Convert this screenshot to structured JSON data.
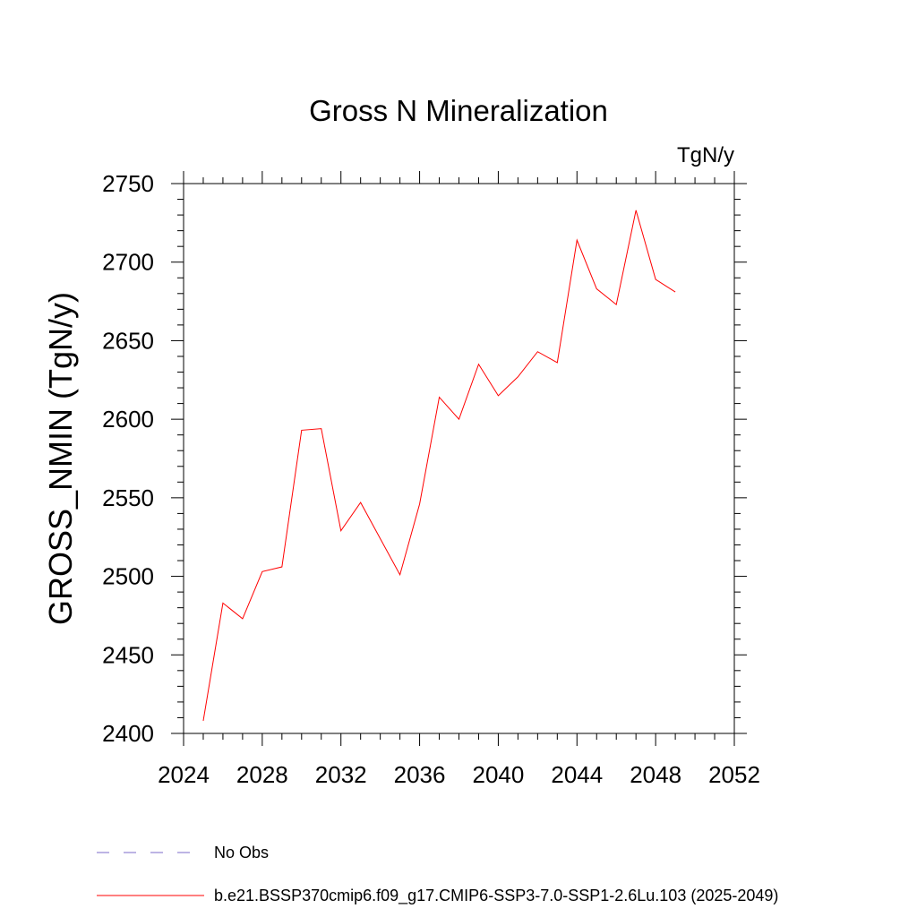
{
  "chart_data": {
    "type": "line",
    "title": "Gross N Mineralization",
    "units_label": "TgN/y",
    "ylabel": "GROSS_NMIN  (TgN/y)",
    "xlabel": "",
    "xlim": [
      2024,
      2052
    ],
    "ylim": [
      2400,
      2750
    ],
    "x_ticks": [
      2024,
      2028,
      2032,
      2036,
      2040,
      2044,
      2048,
      2052
    ],
    "y_ticks": [
      2400,
      2450,
      2500,
      2550,
      2600,
      2650,
      2700,
      2750
    ],
    "grid": false,
    "legend_position": "bottom-left",
    "series": [
      {
        "name": "No Obs",
        "color": "#7b68c8",
        "dash": "dashed",
        "x": [],
        "values": []
      },
      {
        "name": "b.e21.BSSP370cmip6.f09_g17.CMIP6-SSP3-7.0-SSP1-2.6Lu.103 (2025-2049)",
        "color": "#ff0000",
        "dash": "solid",
        "x": [
          2025,
          2026,
          2027,
          2028,
          2029,
          2030,
          2031,
          2032,
          2033,
          2034,
          2035,
          2036,
          2037,
          2038,
          2039,
          2040,
          2041,
          2042,
          2043,
          2044,
          2045,
          2046,
          2047,
          2048,
          2049
        ],
        "values": [
          2408,
          2483,
          2473,
          2503,
          2506,
          2593,
          2594,
          2529,
          2547,
          2524,
          2501,
          2546,
          2614,
          2600,
          2635,
          2615,
          2627,
          2643,
          2636,
          2714,
          2683,
          2673,
          2733,
          2689,
          2681
        ]
      }
    ]
  }
}
